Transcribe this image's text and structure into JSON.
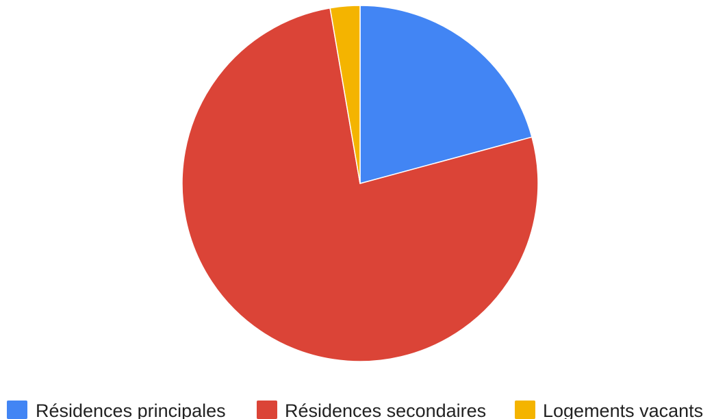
{
  "chart_data": {
    "type": "pie",
    "categories": [
      "Résidences principales",
      "Résidences secondaires",
      "Logements vacants"
    ],
    "values": [
      20.8,
      76.5,
      2.7
    ],
    "colors": [
      "#4285F4",
      "#DB4437",
      "#F4B400"
    ],
    "start": "top",
    "direction": "clockwise",
    "legend_position": "bottom"
  }
}
